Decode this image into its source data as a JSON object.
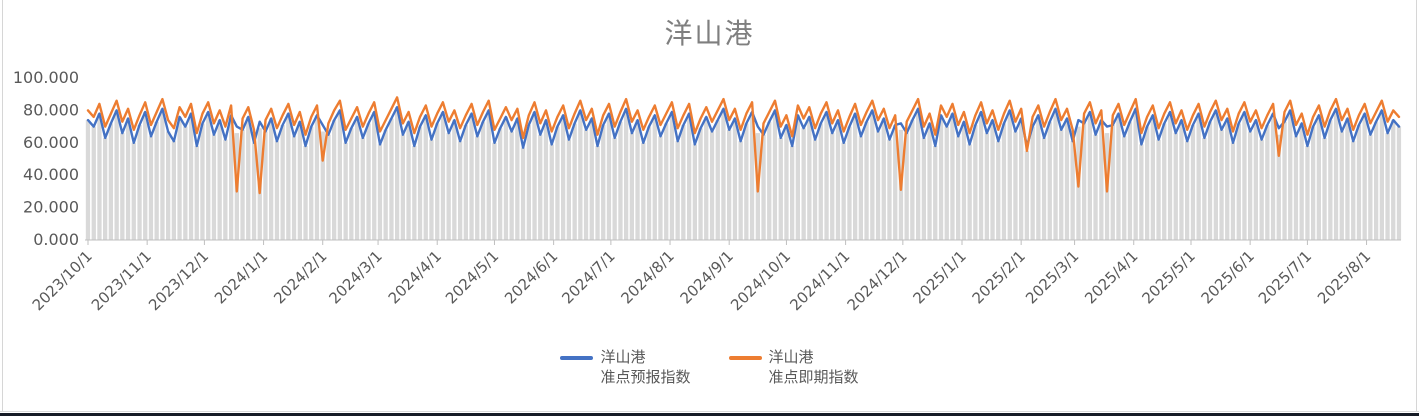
{
  "title": "洋山港",
  "style": {
    "background": "#ffffff",
    "title_color": "#7f7f7f",
    "axis_line_color": "#bfbfbf",
    "tick_text_color": "#595959",
    "dropline_color": "#d9d9d9",
    "edge_line_color": "#d6d6d6",
    "bottom_strip_color": "#161b26"
  },
  "chart_data": {
    "type": "line",
    "title": "洋山港",
    "xlabel": "",
    "ylabel": "",
    "ylim": [
      0,
      100
    ],
    "grid": false,
    "legend_position": "bottom",
    "x_start_date": "2023/10/1",
    "sample_interval_days": 3,
    "x_tick_labels": [
      "2023/10/1",
      "2023/11/1",
      "2023/12/1",
      "2024/1/1",
      "2024/2/1",
      "2024/3/1",
      "2024/4/1",
      "2024/5/1",
      "2024/6/1",
      "2024/7/1",
      "2024/8/1",
      "2024/9/1",
      "2024/10/1",
      "2024/11/1",
      "2024/12/1",
      "2025/1/1",
      "2025/2/1",
      "2025/3/1",
      "2025/4/1",
      "2025/5/1",
      "2025/6/1",
      "2025/7/1",
      "2025/8/1"
    ],
    "y_tick_labels": [
      "0.000",
      "20.000",
      "40.000",
      "60.000",
      "80.000",
      "100.000"
    ],
    "y_tick_values": [
      0,
      20,
      40,
      60,
      80,
      100
    ],
    "series": [
      {
        "name": "洋山港\n准点预报指数",
        "color": "#4472C4",
        "values": [
          74,
          70,
          78,
          63,
          72,
          80,
          66,
          75,
          60,
          71,
          79,
          64,
          73,
          81,
          67,
          61,
          76,
          70,
          78,
          58,
          72,
          79,
          65,
          74,
          62,
          77,
          70,
          68,
          76,
          60,
          73,
          67,
          75,
          61,
          71,
          78,
          64,
          73,
          58,
          70,
          77,
          71,
          65,
          74,
          80,
          60,
          69,
          76,
          63,
          72,
          79,
          59,
          68,
          75,
          82,
          65,
          73,
          58,
          70,
          77,
          62,
          72,
          79,
          66,
          74,
          61,
          71,
          78,
          64,
          73,
          80,
          60,
          69,
          76,
          67,
          75,
          57,
          71,
          79,
          65,
          74,
          59,
          70,
          77,
          62,
          72,
          80,
          68,
          75,
          58,
          71,
          78,
          63,
          73,
          81,
          66,
          74,
          60,
          70,
          77,
          64,
          72,
          79,
          61,
          71,
          78,
          59,
          69,
          76,
          67,
          74,
          81,
          68,
          75,
          61,
          72,
          79,
          70,
          65,
          73,
          80,
          63,
          71,
          58,
          77,
          69,
          76,
          62,
          72,
          79,
          66,
          74,
          60,
          70,
          78,
          64,
          73,
          80,
          67,
          75,
          62,
          71,
          72,
          66,
          74,
          81,
          63,
          72,
          58,
          77,
          70,
          78,
          64,
          73,
          59,
          71,
          79,
          66,
          74,
          61,
          72,
          80,
          67,
          75,
          58,
          70,
          77,
          63,
          73,
          81,
          68,
          75,
          61,
          74,
          72,
          79,
          65,
          74,
          70,
          71,
          78,
          64,
          73,
          81,
          59,
          70,
          77,
          62,
          72,
          79,
          66,
          74,
          61,
          71,
          78,
          63,
          73,
          80,
          68,
          75,
          60,
          72,
          79,
          67,
          74,
          62,
          71,
          78,
          69,
          73,
          80,
          64,
          72,
          58,
          70,
          77,
          63,
          74,
          81,
          67,
          75,
          61,
          71,
          78,
          65,
          73,
          80,
          66,
          74,
          70
        ]
      },
      {
        "name": "洋山港\n准点即期指数",
        "color": "#ED7D31",
        "values": [
          80,
          76,
          84,
          70,
          78,
          86,
          73,
          81,
          68,
          77,
          85,
          71,
          79,
          87,
          74,
          69,
          82,
          76,
          84,
          66,
          78,
          85,
          72,
          80,
          70,
          83,
          30,
          75,
          82,
          68,
          29,
          74,
          81,
          69,
          77,
          84,
          71,
          79,
          65,
          76,
          83,
          49,
          72,
          80,
          86,
          68,
          75,
          82,
          70,
          78,
          85,
          67,
          74,
          81,
          88,
          72,
          79,
          66,
          76,
          83,
          70,
          78,
          85,
          73,
          80,
          69,
          77,
          84,
          71,
          79,
          86,
          68,
          75,
          82,
          74,
          81,
          63,
          77,
          85,
          72,
          80,
          67,
          76,
          83,
          69,
          78,
          86,
          74,
          81,
          65,
          77,
          84,
          70,
          79,
          87,
          73,
          80,
          68,
          76,
          83,
          71,
          78,
          85,
          69,
          77,
          84,
          66,
          75,
          82,
          73,
          80,
          87,
          74,
          81,
          68,
          78,
          85,
          30,
          72,
          79,
          86,
          70,
          77,
          64,
          83,
          75,
          82,
          69,
          78,
          85,
          72,
          80,
          67,
          76,
          84,
          71,
          79,
          86,
          74,
          81,
          69,
          77,
          31,
          73,
          80,
          87,
          70,
          78,
          65,
          83,
          76,
          84,
          71,
          79,
          66,
          77,
          85,
          72,
          80,
          68,
          78,
          86,
          73,
          81,
          55,
          76,
          83,
          70,
          79,
          87,
          74,
          81,
          68,
          33,
          78,
          85,
          72,
          80,
          30,
          77,
          84,
          71,
          79,
          87,
          66,
          76,
          83,
          69,
          78,
          85,
          72,
          80,
          68,
          77,
          84,
          70,
          79,
          86,
          74,
          81,
          67,
          78,
          85,
          73,
          80,
          69,
          77,
          84,
          52,
          79,
          86,
          71,
          78,
          65,
          76,
          83,
          70,
          80,
          87,
          74,
          81,
          68,
          77,
          84,
          72,
          79,
          86,
          73,
          80,
          76
        ]
      }
    ]
  }
}
